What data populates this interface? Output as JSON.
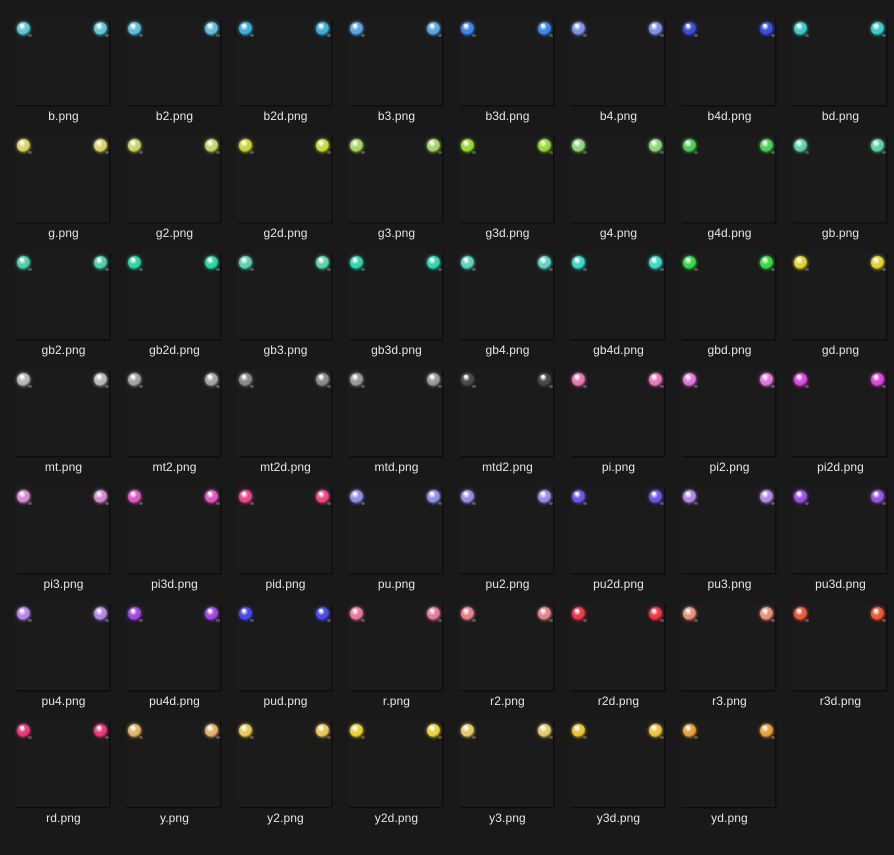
{
  "files": [
    {
      "name": "b.png",
      "color": "#5fc9d6"
    },
    {
      "name": "b2.png",
      "color": "#5fbfdc"
    },
    {
      "name": "b2d.png",
      "color": "#3fb0d8"
    },
    {
      "name": "b3.png",
      "color": "#5aa6e4"
    },
    {
      "name": "b3d.png",
      "color": "#3f86ee"
    },
    {
      "name": "b4.png",
      "color": "#7e93e8"
    },
    {
      "name": "b4d.png",
      "color": "#3a4fe0"
    },
    {
      "name": "bd.png",
      "color": "#3ecbcc"
    },
    {
      "name": "g.png",
      "color": "#d9d36a"
    },
    {
      "name": "g2.png",
      "color": "#c9d46a"
    },
    {
      "name": "g2d.png",
      "color": "#c8d83c"
    },
    {
      "name": "g3.png",
      "color": "#a9d46a"
    },
    {
      "name": "g3d.png",
      "color": "#94d83a"
    },
    {
      "name": "g4.png",
      "color": "#8fd67c"
    },
    {
      "name": "g4d.png",
      "color": "#4fd05a"
    },
    {
      "name": "gb.png",
      "color": "#5fd4a0"
    },
    {
      "name": "gb2.png",
      "color": "#4fd0a8"
    },
    {
      "name": "gb2d.png",
      "color": "#2fd4a0"
    },
    {
      "name": "gb3.png",
      "color": "#5fd2b0"
    },
    {
      "name": "gb3d.png",
      "color": "#2fd6b0"
    },
    {
      "name": "gb4.png",
      "color": "#5fd2c2"
    },
    {
      "name": "gb4d.png",
      "color": "#3fd8c4"
    },
    {
      "name": "gbd.png",
      "color": "#3ad84a"
    },
    {
      "name": "gd.png",
      "color": "#e0d434"
    },
    {
      "name": "mt.png",
      "color": "#b8b8b8"
    },
    {
      "name": "mt2.png",
      "color": "#a4a4a4"
    },
    {
      "name": "mt2d.png",
      "color": "#8c8c8c"
    },
    {
      "name": "mtd.png",
      "color": "#9a9a9a"
    },
    {
      "name": "mtd2.png",
      "color": "#4a4a4a"
    },
    {
      "name": "pi.png",
      "color": "#e97ab8"
    },
    {
      "name": "pi2.png",
      "color": "#e47ae0"
    },
    {
      "name": "pi2d.png",
      "color": "#e04ae0"
    },
    {
      "name": "pi3.png",
      "color": "#d88ad0"
    },
    {
      "name": "pi3d.png",
      "color": "#e058c0"
    },
    {
      "name": "pid.png",
      "color": "#ec4a8a"
    },
    {
      "name": "pu.png",
      "color": "#9090e8"
    },
    {
      "name": "pu2.png",
      "color": "#9a8ee4"
    },
    {
      "name": "pu2d.png",
      "color": "#6a5ae8"
    },
    {
      "name": "pu3.png",
      "color": "#b08ae6"
    },
    {
      "name": "pu3d.png",
      "color": "#9a54e8"
    },
    {
      "name": "pu4.png",
      "color": "#b48ae8"
    },
    {
      "name": "pu4d.png",
      "color": "#a24ae6"
    },
    {
      "name": "pud.png",
      "color": "#4a4ae8"
    },
    {
      "name": "r.png",
      "color": "#e87a9a"
    },
    {
      "name": "r2.png",
      "color": "#e4828a"
    },
    {
      "name": "r2d.png",
      "color": "#ec3a4a"
    },
    {
      "name": "r3.png",
      "color": "#e8907a"
    },
    {
      "name": "r3d.png",
      "color": "#ec5a3a"
    },
    {
      "name": "rd.png",
      "color": "#ec3a7a"
    },
    {
      "name": "y.png",
      "color": "#e4b26a"
    },
    {
      "name": "y2.png",
      "color": "#e8c85a"
    },
    {
      "name": "y2d.png",
      "color": "#ecd23a"
    },
    {
      "name": "y3.png",
      "color": "#e4cc6a"
    },
    {
      "name": "y3d.png",
      "color": "#ecc43a"
    },
    {
      "name": "yd.png",
      "color": "#e8a23a"
    }
  ]
}
